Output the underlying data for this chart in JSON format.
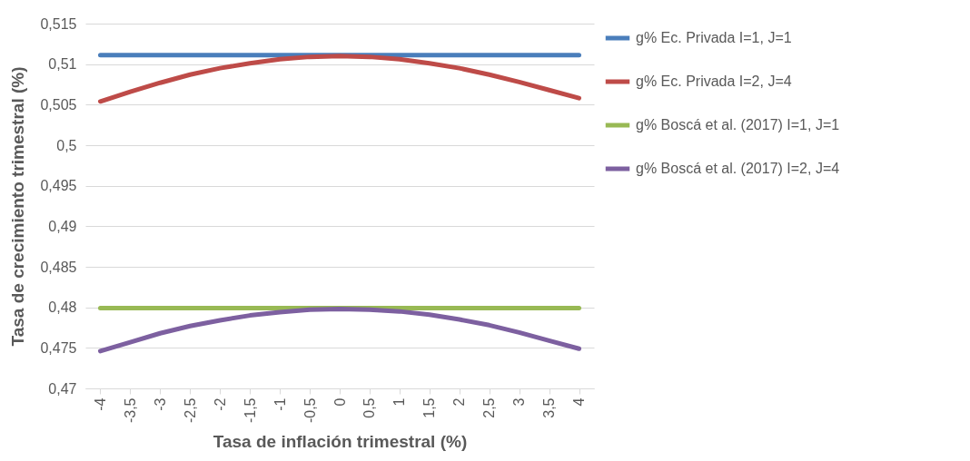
{
  "chart_data": {
    "type": "line",
    "xlabel": "Tasa de inflación trimestral (%)",
    "ylabel": "Tasa de crecimiento trimestral (%)",
    "categories": [
      "-4",
      "-3,5",
      "-3",
      "-2,5",
      "-2",
      "-1,5",
      "-1",
      "-0,5",
      "0",
      "0,5",
      "1",
      "1,5",
      "2",
      "2,5",
      "3",
      "3,5",
      "4"
    ],
    "series": [
      {
        "name": "g% Ec. Privada I=1, J=1",
        "color": "#4a7ebb",
        "values": [
          0.5111,
          0.5111,
          0.5111,
          0.5111,
          0.5111,
          0.5111,
          0.5111,
          0.5111,
          0.5111,
          0.5111,
          0.5111,
          0.5111,
          0.5111,
          0.5111,
          0.5111,
          0.5111,
          0.5111
        ]
      },
      {
        "name": "g% Ec. Privada I=2, J=4",
        "color": "#be4b48",
        "values": [
          0.5054,
          0.5066,
          0.5077,
          0.5087,
          0.5095,
          0.5101,
          0.5106,
          0.5109,
          0.511,
          0.5109,
          0.5106,
          0.5101,
          0.5095,
          0.5087,
          0.5078,
          0.5068,
          0.5058
        ]
      },
      {
        "name": "g% Boscá et al. (2017) I=1, J=1",
        "color": "#98b954",
        "values": [
          0.4799,
          0.4799,
          0.4799,
          0.4799,
          0.4799,
          0.4799,
          0.4799,
          0.4799,
          0.4799,
          0.4799,
          0.4799,
          0.4799,
          0.4799,
          0.4799,
          0.4799,
          0.4799,
          0.4799
        ]
      },
      {
        "name": "g% Boscá et al. (2017) I=2, J=4",
        "color": "#7d60a0",
        "values": [
          0.4746,
          0.4757,
          0.4768,
          0.4777,
          0.4784,
          0.479,
          0.4794,
          0.4797,
          0.4798,
          0.4797,
          0.4795,
          0.4791,
          0.4785,
          0.4778,
          0.4769,
          0.4759,
          0.4749
        ]
      }
    ],
    "ylim": [
      0.47,
      0.515
    ],
    "yticks": [
      {
        "value": 0.47,
        "label": "0,47"
      },
      {
        "value": 0.475,
        "label": "0,475"
      },
      {
        "value": 0.48,
        "label": "0,48"
      },
      {
        "value": 0.485,
        "label": "0,485"
      },
      {
        "value": 0.49,
        "label": "0,49"
      },
      {
        "value": 0.495,
        "label": "0,495"
      },
      {
        "value": 0.5,
        "label": "0,5"
      },
      {
        "value": 0.505,
        "label": "0,505"
      },
      {
        "value": 0.51,
        "label": "0,51"
      },
      {
        "value": 0.515,
        "label": "0,515"
      }
    ],
    "grid": "y",
    "legend": "right",
    "marker": "none",
    "line_style": "solid"
  }
}
